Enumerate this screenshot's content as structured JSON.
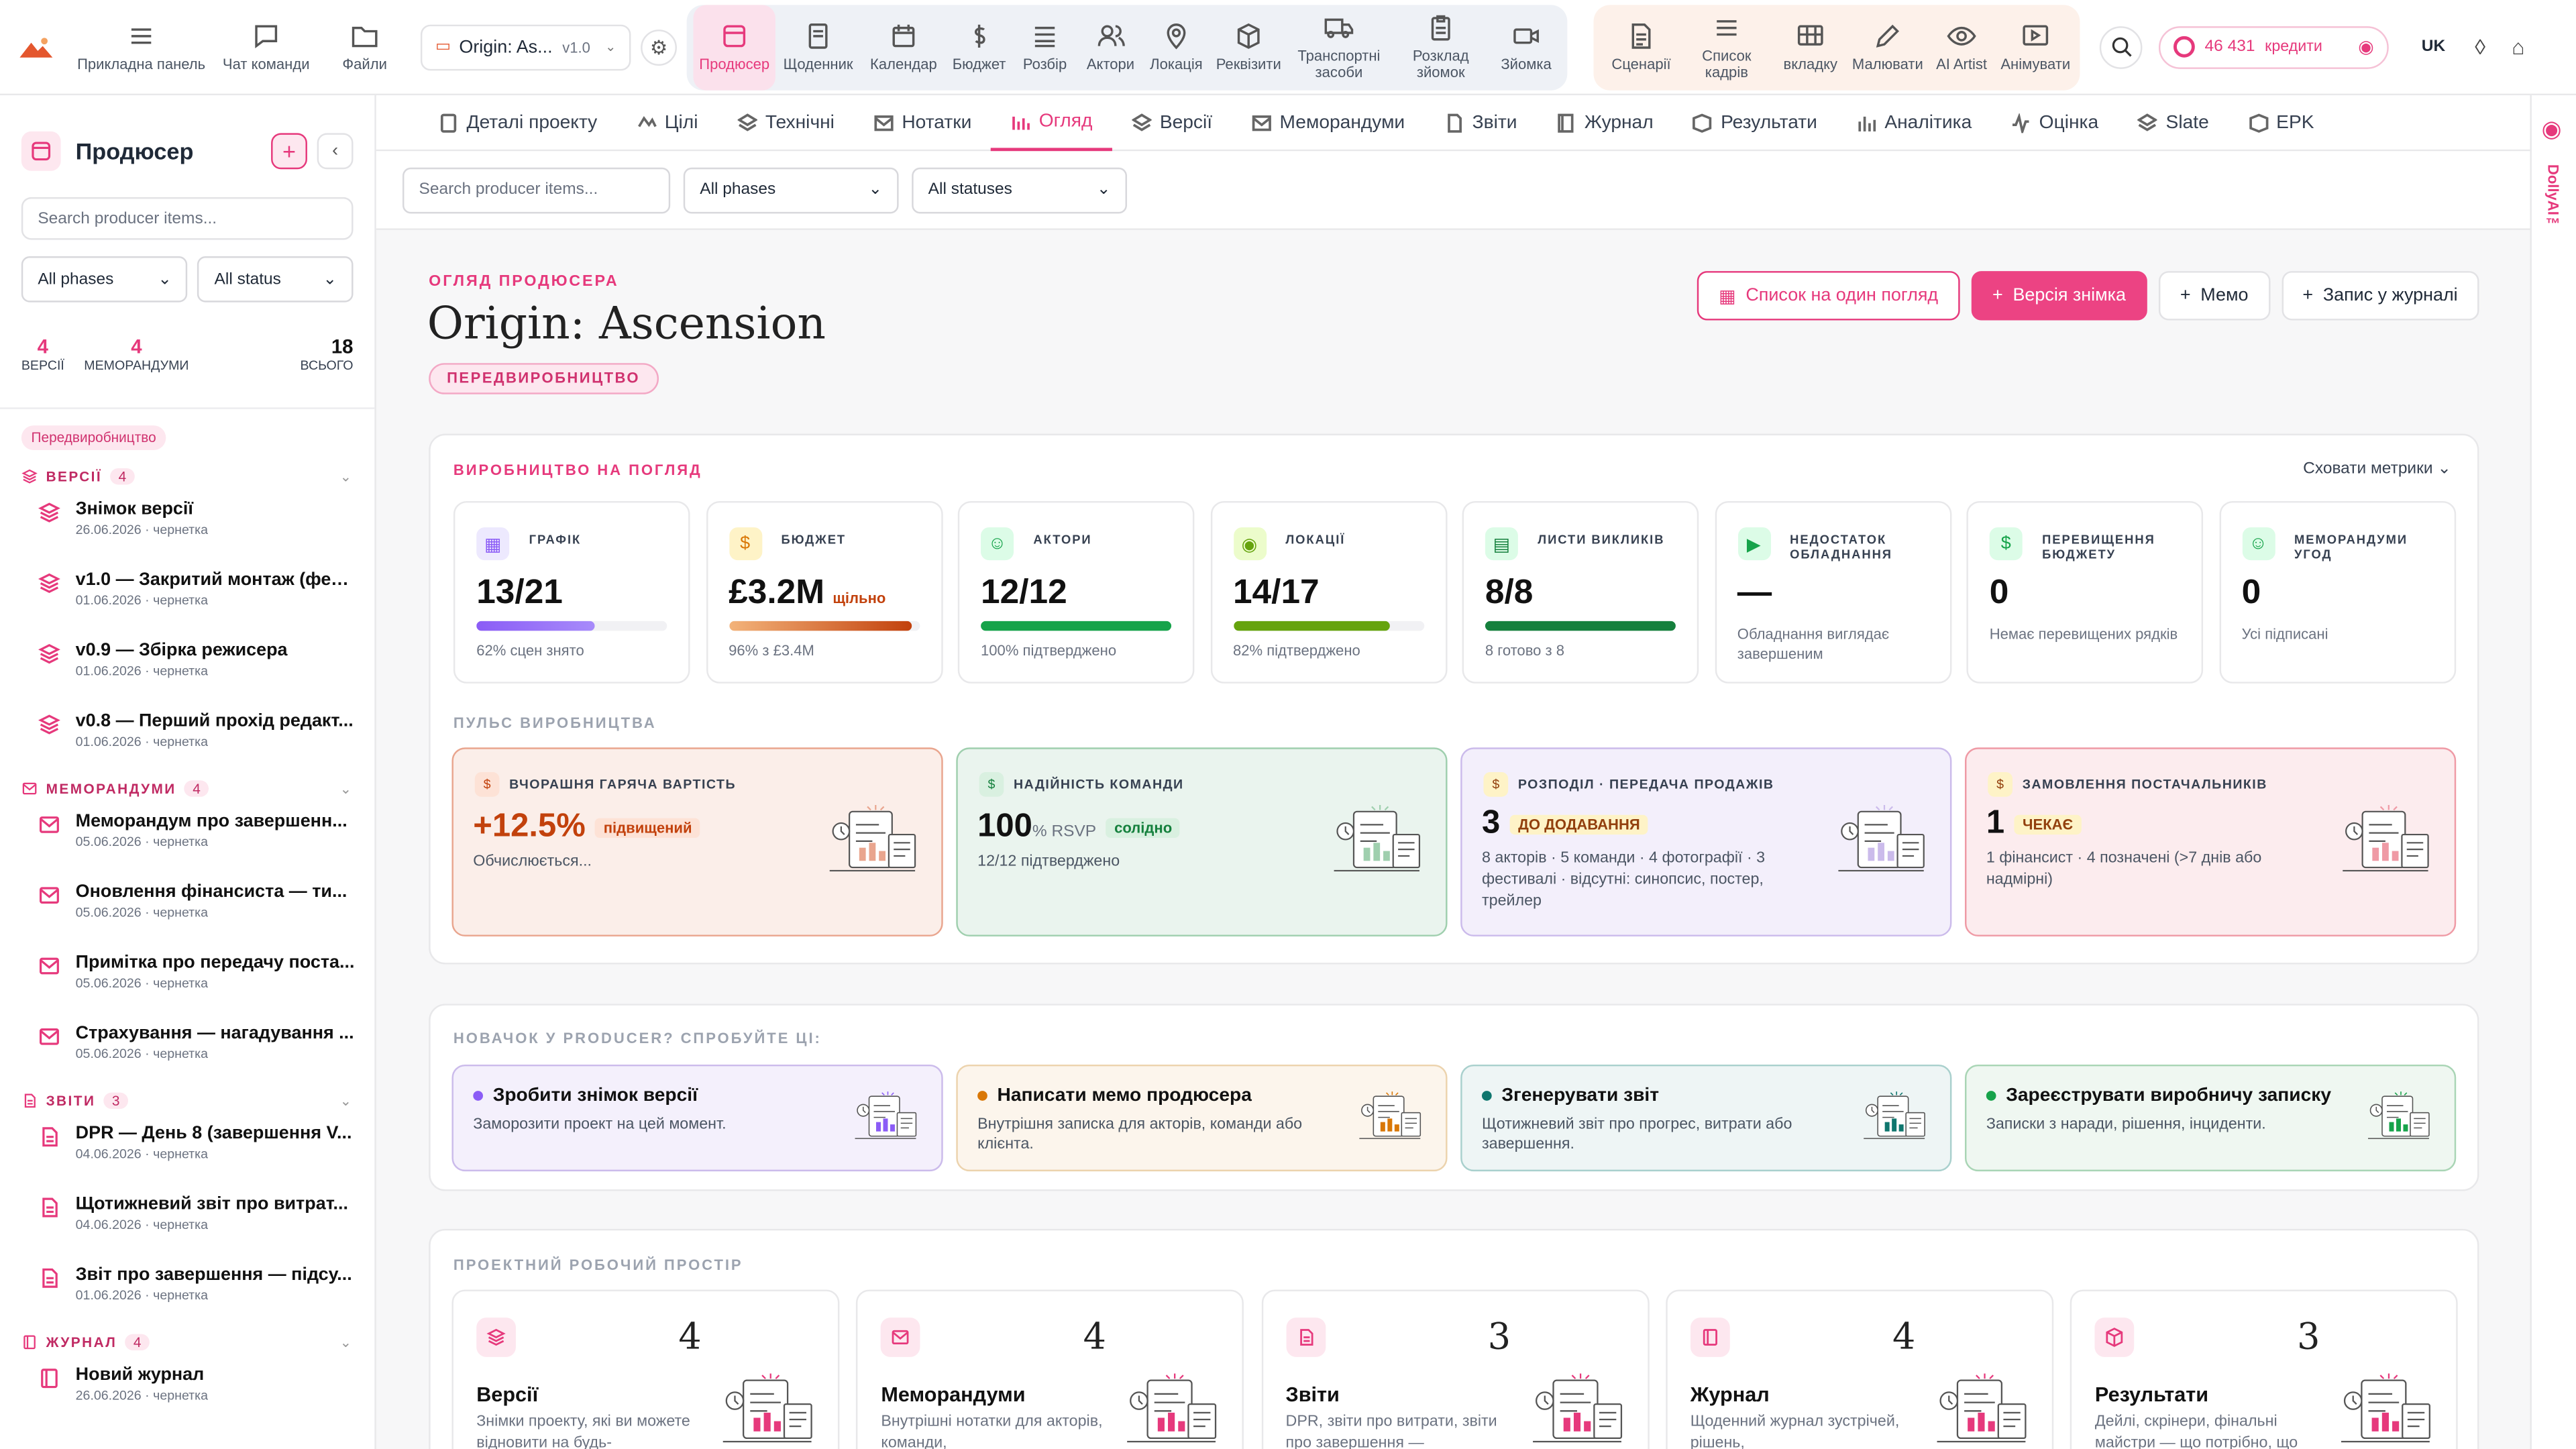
{
  "topbar": {
    "left": [
      {
        "label": "Прикладна панель",
        "icon": "dashboard-icon"
      },
      {
        "label": "Чат команди",
        "icon": "chat-icon"
      },
      {
        "label": "Файли",
        "icon": "folder-icon"
      }
    ],
    "project": {
      "name": "Origin: As...",
      "version": "v1.0"
    },
    "nav_a": [
      {
        "label": "Продюсер",
        "active": true
      },
      {
        "label": "Щоденник"
      },
      {
        "label": "Календар"
      },
      {
        "label": "Бюджет"
      },
      {
        "label": "Розбір"
      },
      {
        "label": "Актори"
      },
      {
        "label": "Локація"
      },
      {
        "label": "Реквізити"
      },
      {
        "label": "Транспортні засоби"
      },
      {
        "label": "Розклад зйомок"
      },
      {
        "label": "Зйомка"
      }
    ],
    "nav_b": [
      {
        "label": "Сценарії"
      },
      {
        "label": "Список кадрів"
      },
      {
        "label": "вкладку"
      },
      {
        "label": "Малювати"
      },
      {
        "label": "AI Artist"
      },
      {
        "label": "Анімувати"
      }
    ],
    "credits": "46 431",
    "credits_label": "кредити",
    "lang": "UK"
  },
  "sidebar": {
    "title": "Продюсер",
    "search_placeholder": "Search producer items...",
    "filter_phase": "All phases",
    "filter_status": "All status",
    "stats": [
      {
        "value": "4",
        "label": "ВЕРСІЇ"
      },
      {
        "value": "4",
        "label": "МЕМОРАНДУМИ"
      }
    ],
    "total": {
      "value": "18",
      "label": "ВСЬОГО"
    },
    "phase_badge": "Передвиробництво",
    "sections": [
      {
        "title": "ВЕРСІЇ",
        "count": "4",
        "items": [
          {
            "title": "Знімок версії",
            "meta": "26.06.2026 · чернетка"
          },
          {
            "title": "v1.0 — Закритий монтаж (фес...",
            "meta": "01.06.2026 · чернетка"
          },
          {
            "title": "v0.9 — Збірка режисера",
            "meta": "01.06.2026 · чернетка"
          },
          {
            "title": "v0.8 — Перший прохід редакт...",
            "meta": "01.06.2026 · чернетка"
          }
        ]
      },
      {
        "title": "МЕМОРАНДУМИ",
        "count": "4",
        "items": [
          {
            "title": "Меморандум про завершенн...",
            "meta": "05.06.2026 · чернетка"
          },
          {
            "title": "Оновлення фінансиста — ти...",
            "meta": "05.06.2026 · чернетка"
          },
          {
            "title": "Примітка про передачу поста...",
            "meta": "05.06.2026 · чернетка"
          },
          {
            "title": "Страхування — нагадування ...",
            "meta": "05.06.2026 · чернетка"
          }
        ]
      },
      {
        "title": "ЗВІТИ",
        "count": "3",
        "items": [
          {
            "title": "DPR — День 8 (завершення V...",
            "meta": "04.06.2026 · чернетка"
          },
          {
            "title": "Щотижневий звіт про витрат...",
            "meta": "04.06.2026 · чернетка"
          },
          {
            "title": "Звіт про завершення — підсу...",
            "meta": "01.06.2026 · чернетка"
          }
        ]
      },
      {
        "title": "ЖУРНАЛ",
        "count": "4",
        "items": [
          {
            "title": "Новий журнал",
            "meta": "26.06.2026 · чернетка"
          }
        ]
      }
    ]
  },
  "tabs": [
    {
      "label": "Деталі проекту"
    },
    {
      "label": "Цілі"
    },
    {
      "label": "Технічні"
    },
    {
      "label": "Нотатки"
    },
    {
      "label": "Огляд",
      "active": true
    },
    {
      "label": "Версії"
    },
    {
      "label": "Меморандуми"
    },
    {
      "label": "Звіти"
    },
    {
      "label": "Журнал"
    },
    {
      "label": "Результати"
    },
    {
      "label": "Аналітика"
    },
    {
      "label": "Оцінка"
    },
    {
      "label": "Slate"
    },
    {
      "label": "EPK"
    }
  ],
  "filterbar": {
    "search_placeholder": "Search producer items...",
    "phase": "All phases",
    "status": "All statuses"
  },
  "rail": {
    "label": "DollyAI™"
  },
  "header": {
    "eyebrow": "ОГЛЯД ПРОДЮСЕРА",
    "title": "Origin: Ascension",
    "phase": "ПЕРЕДВИРОБНИЦТВО",
    "actions": {
      "one_glance": "Список на один погляд",
      "snapshot": "Версія знімка",
      "memo": "Мемо",
      "journal": "Запис у журналі"
    }
  },
  "glance": {
    "title": "ВИРОБНИЦТВО НА ПОГЛЯД",
    "hide": "Сховати метрики",
    "metrics": [
      {
        "label": "ГРАФІК",
        "value": "13/21",
        "sub": "62% сцен знято",
        "progress": 0.62,
        "color": "#8b5cf6",
        "bg": "#ede9fe",
        "icon": "▦"
      },
      {
        "label": "БЮДЖЕТ",
        "value": "£3.2M",
        "tag": "щільно",
        "sub": "96% з £3.4M",
        "progress": 0.96,
        "color": "#d97706",
        "bg": "#fef3c7",
        "icon": "$"
      },
      {
        "label": "АКТОРИ",
        "value": "12/12",
        "sub": "100% підтверджено",
        "progress": 1.0,
        "color": "#16a34a",
        "bg": "#dcfce7",
        "icon": "☺"
      },
      {
        "label": "ЛОКАЦІЇ",
        "value": "14/17",
        "sub": "82% підтверджено",
        "progress": 0.82,
        "color": "#65a30d",
        "bg": "#ecfccb",
        "icon": "◉"
      },
      {
        "label": "ЛИСТИ ВИКЛИКІВ",
        "value": "8/8",
        "sub": "8 готово з 8",
        "progress": 1.0,
        "color": "#15803d",
        "bg": "#dcfce7",
        "icon": "▤"
      },
      {
        "label": "НЕДОСТАТОК ОБЛАДНАННЯ",
        "value": "—",
        "sub": "Обладнання виглядає завершеним",
        "color": "#16a34a",
        "bg": "#dcfce7",
        "icon": "▶"
      },
      {
        "label": "ПЕРЕВИЩЕННЯ БЮДЖЕТУ",
        "value": "0",
        "sub": "Немає перевищених рядків",
        "color": "#16a34a",
        "bg": "#dcfce7",
        "icon": "$"
      },
      {
        "label": "МЕМОРАНДУМИ УГОД",
        "value": "0",
        "sub": "Усі підписані",
        "color": "#16a34a",
        "bg": "#dcfce7",
        "icon": "☺"
      }
    ]
  },
  "pulse": {
    "title": "ПУЛЬС ВИРОБНИЦТВА",
    "cards": [
      {
        "label": "ВЧОРАШНЯ ГАРЯЧА ВАРТІСТЬ",
        "value": "+12.5%",
        "tag": "підвищений",
        "sub": "Обчислюється...",
        "bg": "#fbeee9",
        "border": "#e9a58e",
        "valcolor": "#c2410c",
        "tagbg": "#fde2d6",
        "tagcolor": "#c2410c"
      },
      {
        "label": "НАДІЙНІСТЬ КОМАНДИ",
        "value": "100",
        "value_suffix": "% RSVP",
        "tag": "солідно",
        "sub": "12/12 підтверджено",
        "bg": "#eaf4ee",
        "border": "#9fcfae",
        "valcolor": "#111",
        "tagbg": "#d9f0e0",
        "tagcolor": "#15803d"
      },
      {
        "label": "РОЗПОДІЛ · ПЕРЕДАЧА ПРОДАЖІВ",
        "value": "3",
        "tag": "ДО ДОДАВАННЯ",
        "sub": "8 акторів · 5 команди · 4 фотографії · 3 фестивалі · відсутні: синопсис, постер, трейлер",
        "bg": "#f3effb",
        "border": "#cbbbeb",
        "valcolor": "#111",
        "tagbg": "#fef3c7",
        "tagcolor": "#92400e"
      },
      {
        "label": "ЗАМОВЛЕННЯ ПОСТАЧАЛЬНИКІВ",
        "value": "1",
        "tag": "ЧЕКАЄ",
        "sub": "1 фінансист · 4 позначені (>7 днів або надмірні)",
        "bg": "#fcecee",
        "border": "#ef9aa5",
        "valcolor": "#111",
        "tagbg": "#fef3c7",
        "tagcolor": "#92400e"
      }
    ]
  },
  "newbie": {
    "title": "НОВАЧОК У PRODUCER? СПРОБУЙТЕ ЦІ:",
    "cards": [
      {
        "title": "Зробити знімок версії",
        "sub": "Заморозити проект на цей момент.",
        "dot": "#8b5cf6",
        "bg": "#f4f0fc",
        "border": "#cbbbeb"
      },
      {
        "title": "Написати мемо продюсера",
        "sub": "Внутрішня записка для акторів, команди або клієнта.",
        "dot": "#d97706",
        "bg": "#fcf5ec",
        "border": "#ecd3ad"
      },
      {
        "title": "Згенерувати звіт",
        "sub": "Щотижневий звіт про прогрес, витрати або завершення.",
        "dot": "#0f766e",
        "bg": "#eef5f5",
        "border": "#a9d0cd"
      },
      {
        "title": "Зареєструвати виробничу записку",
        "sub": "Записки з наради, рішення, інциденти.",
        "dot": "#16a34a",
        "bg": "#eff7f1",
        "border": "#a9d5b5"
      }
    ]
  },
  "workspace": {
    "title": "ПРОЕКТНИЙ РОБОЧИЙ ПРОСТІР",
    "cards": [
      {
        "title": "Версії",
        "count": "4",
        "sub": "Знімки проекту, які ви можете відновити на будь-"
      },
      {
        "title": "Меморандуми",
        "count": "4",
        "sub": "Внутрішні нотатки для акторів, команди,"
      },
      {
        "title": "Звіти",
        "count": "3",
        "sub": "DPR, звіти про витрати, звіти про завершення —"
      },
      {
        "title": "Журнал",
        "count": "4",
        "sub": "Щоденний журнал зустрічей, рішень,"
      },
      {
        "title": "Результати",
        "count": "3",
        "sub": "Дейлі, скрінери, фінальні майстри — що потрібно, що"
      }
    ]
  }
}
